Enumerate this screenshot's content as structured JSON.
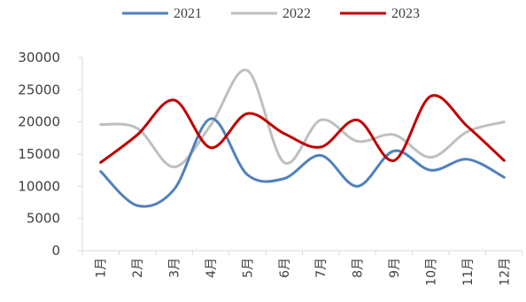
{
  "chart_data": {
    "type": "line",
    "categories": [
      "1月",
      "2月",
      "3月",
      "4月",
      "5月",
      "6月",
      "7月",
      "8月",
      "9月",
      "10月",
      "11月",
      "12月"
    ],
    "series": [
      {
        "name": "2021",
        "color": "#4F81BD",
        "values": [
          12300,
          7000,
          9500,
          20500,
          11800,
          11200,
          14800,
          10000,
          15500,
          12500,
          14200,
          11400
        ]
      },
      {
        "name": "2022",
        "color": "#BFBFBF",
        "values": [
          19600,
          19000,
          13000,
          19500,
          28000,
          13700,
          20300,
          17000,
          18000,
          14500,
          18500,
          20000
        ]
      },
      {
        "name": "2023",
        "color": "#C00000",
        "values": [
          13700,
          18000,
          23400,
          16000,
          21300,
          18200,
          16100,
          20300,
          14000,
          24000,
          19300,
          14000
        ]
      }
    ],
    "ylim": [
      0,
      30000
    ],
    "yticks": [
      "30000",
      "25000",
      "20000",
      "15000",
      "10000",
      "5000",
      "0"
    ],
    "ytick_values": [
      30000,
      25000,
      20000,
      15000,
      10000,
      5000,
      0
    ],
    "smooth": true,
    "grid": false,
    "legend_position": "top"
  }
}
